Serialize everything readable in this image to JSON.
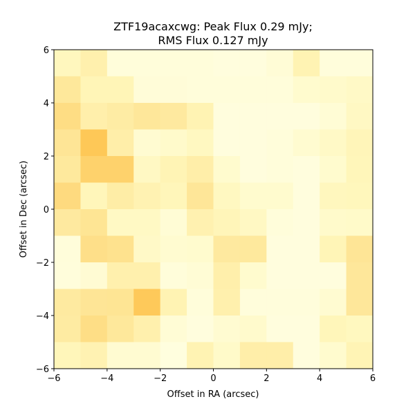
{
  "chart_data": {
    "type": "heatmap",
    "title_lines": [
      "ZTF19acaxcwg: Peak Flux 0.29 mJy;",
      "RMS Flux 0.127 mJy"
    ],
    "xlabel": "Offset in RA (arcsec)",
    "ylabel": "Offset in Dec (arcsec)",
    "xlim": [
      -6,
      6
    ],
    "ylim": [
      -6,
      6
    ],
    "x_ticks": [
      -6,
      -4,
      -2,
      0,
      2,
      4,
      6
    ],
    "y_ticks": [
      -6,
      -4,
      -2,
      0,
      2,
      4,
      6
    ],
    "x_tick_labels": [
      "−6",
      "−4",
      "−2",
      "0",
      "2",
      "4",
      "6"
    ],
    "y_tick_labels": [
      "−6",
      "−4",
      "−2",
      "0",
      "2",
      "4",
      "6"
    ],
    "grid": false,
    "colormap": "YlOrBr",
    "cell_size_arcsec": 1,
    "rows_top_to_bottom": [
      [
        0.24,
        0.34,
        0.07,
        0.07,
        0.07,
        0.07,
        0.05,
        0.05,
        0.09,
        0.3,
        0.06,
        0.06
      ],
      [
        0.44,
        0.28,
        0.28,
        0.08,
        0.08,
        0.07,
        0.07,
        0.07,
        0.07,
        0.14,
        0.16,
        0.19
      ],
      [
        0.55,
        0.35,
        0.39,
        0.45,
        0.42,
        0.3,
        0.05,
        0.05,
        0.05,
        0.05,
        0.1,
        0.21
      ],
      [
        0.47,
        0.72,
        0.36,
        0.12,
        0.16,
        0.22,
        0.05,
        0.05,
        0.07,
        0.13,
        0.19,
        0.27
      ],
      [
        0.43,
        0.64,
        0.64,
        0.21,
        0.29,
        0.36,
        0.14,
        0.05,
        0.07,
        0.05,
        0.14,
        0.26
      ],
      [
        0.57,
        0.26,
        0.38,
        0.31,
        0.26,
        0.46,
        0.22,
        0.14,
        0.14,
        0.05,
        0.24,
        0.25
      ],
      [
        0.42,
        0.48,
        0.2,
        0.2,
        0.1,
        0.32,
        0.27,
        0.21,
        0.07,
        0.05,
        0.16,
        0.17
      ],
      [
        0.07,
        0.53,
        0.51,
        0.18,
        0.13,
        0.14,
        0.42,
        0.43,
        0.05,
        0.05,
        0.28,
        0.47
      ],
      [
        0.06,
        0.11,
        0.34,
        0.34,
        0.07,
        0.1,
        0.35,
        0.14,
        0.05,
        0.05,
        0.05,
        0.45
      ],
      [
        0.41,
        0.47,
        0.48,
        0.71,
        0.3,
        0.07,
        0.34,
        0.06,
        0.06,
        0.06,
        0.12,
        0.45
      ],
      [
        0.4,
        0.54,
        0.44,
        0.34,
        0.1,
        0.05,
        0.12,
        0.15,
        0.05,
        0.05,
        0.26,
        0.23
      ],
      [
        0.26,
        0.31,
        0.12,
        0.12,
        0.04,
        0.3,
        0.17,
        0.36,
        0.36,
        0.05,
        0.14,
        0.29
      ]
    ]
  }
}
